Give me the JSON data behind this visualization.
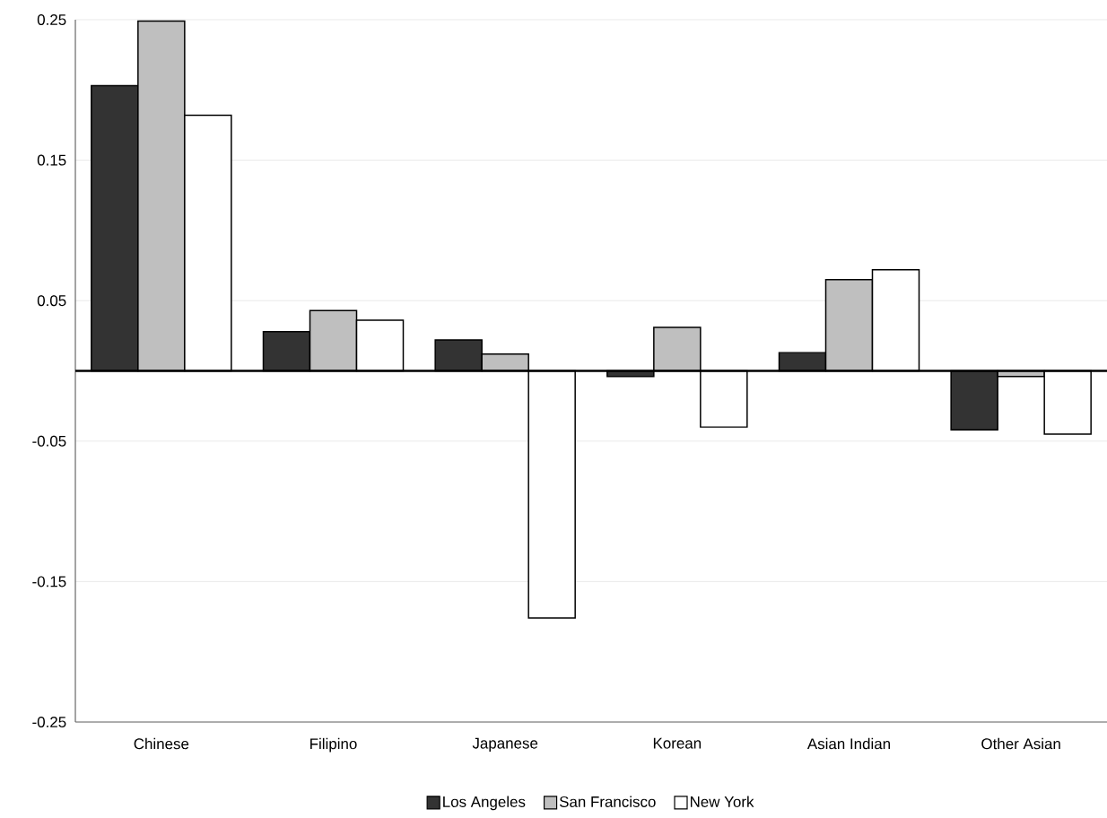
{
  "chart_data": {
    "type": "bar",
    "categories": [
      "Chinese",
      "Filipino",
      "Japanese",
      "Korean",
      "Asian Indian",
      "Other Asian"
    ],
    "series": [
      {
        "name": "Los Angeles",
        "color": "#333333",
        "values": [
          0.203,
          0.028,
          0.022,
          -0.004,
          0.013,
          -0.042
        ]
      },
      {
        "name": "San Francisco",
        "color": "#bfbfbf",
        "values": [
          0.249,
          0.043,
          0.012,
          0.031,
          0.065,
          -0.004
        ]
      },
      {
        "name": "New York",
        "color": "#ffffff",
        "values": [
          0.182,
          0.036,
          -0.176,
          -0.04,
          0.072,
          -0.045
        ]
      }
    ],
    "ylim": [
      -0.25,
      0.25
    ],
    "yticks": [
      -0.25,
      -0.15,
      -0.05,
      0.05,
      0.15,
      0.25
    ],
    "grid": "y",
    "legend": "bottom"
  }
}
